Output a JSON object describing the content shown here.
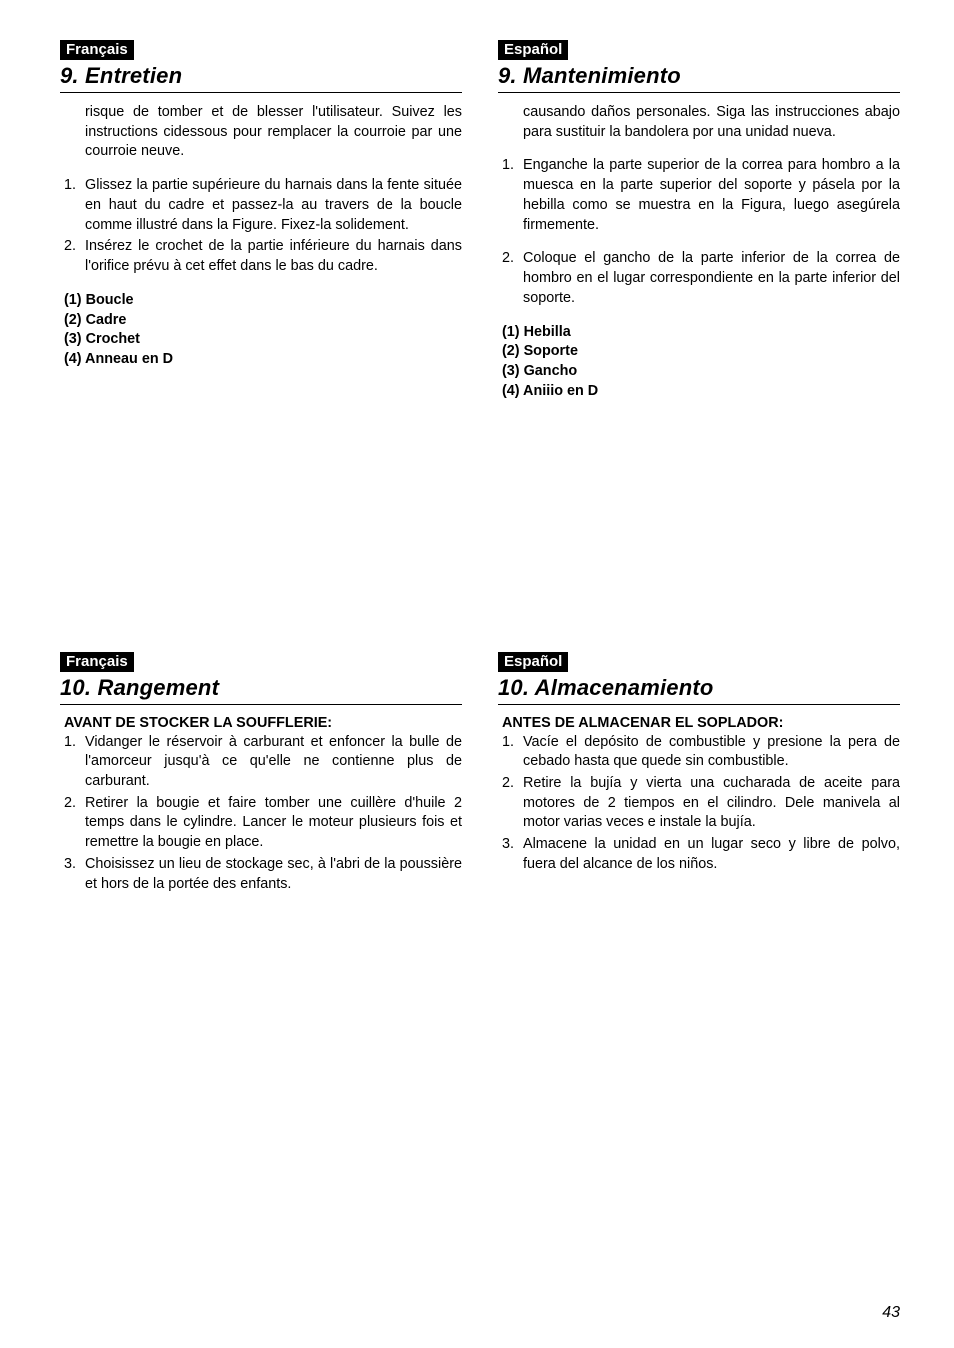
{
  "colors": {
    "text": "#000000",
    "bg": "#ffffff",
    "tag_bg": "#000000",
    "tag_fg": "#ffffff",
    "rule": "#000000"
  },
  "fonts": {
    "body_size_pt": 11,
    "title_size_pt": 16,
    "tag_size_pt": 11
  },
  "page_number": "43",
  "sections": {
    "s9": {
      "fr": {
        "lang": "Français",
        "title": "9. Entretien",
        "intro": "risque de tomber et de blesser l'utilisateur. Suivez les instructions cidessous pour remplacer la courroie par une courroie neuve.",
        "steps": [
          "Glissez la partie supérieure du harnais dans la fente située en haut du cadre et passez-la au travers de la boucle comme illustré dans la Figure. Fixez-la solidement.",
          "Insérez le crochet de la partie inférieure du harnais dans l'orifice prévu à cet effet dans le bas du cadre."
        ],
        "parts": [
          "(1) Boucle",
          "(2) Cadre",
          "(3) Crochet",
          "(4) Anneau en D"
        ]
      },
      "es": {
        "lang": "Español",
        "title": "9. Mantenimiento",
        "intro": "causando daños personales. Siga las instrucciones abajo para sustituir la bandolera por una unidad nueva.",
        "steps": [
          "Enganche la parte superior de la correa para hombro a la muesca en la parte superior del soporte y pásela por la hebilla como se muestra en la Figura, luego asegúrela firmemente.",
          "Coloque el gancho de la parte inferior de la correa de hombro en el lugar correspondiente en la parte inferior del soporte."
        ],
        "parts": [
          "(1) Hebilla",
          "(2) Soporte",
          "(3) Gancho",
          "(4) Aniiio en D"
        ]
      }
    },
    "s10": {
      "fr": {
        "lang": "Français",
        "title": "10. Rangement",
        "subhead": "AVANT DE STOCKER LA SOUFFLERIE:",
        "steps": [
          "Vidanger le réservoir à carburant et enfoncer la bulle de l'amorceur jusqu'à ce qu'elle ne contienne plus de carburant.",
          "Retirer la bougie et faire tomber une cuillère d'huile 2 temps dans le cylindre. Lancer le moteur plusieurs fois et remettre la bougie en place.",
          "Choisissez un lieu de stockage sec, à l'abri de la poussière et hors de la portée des enfants."
        ]
      },
      "es": {
        "lang": "Español",
        "title": "10. Almacenamiento",
        "subhead": "ANTES DE ALMACENAR EL SOPLADOR:",
        "steps": [
          "Vacíe el depósito de combustible y presione la pera de cebado hasta que quede sin combustible.",
          "Retire la bujía y vierta una cucharada de aceite para motores de 2 tiempos en el cilindro. Dele manivela al motor varias veces e instale la bujía.",
          "Almacene la unidad en un lugar seco y libre de polvo, fuera del alcance de los niños."
        ]
      }
    }
  }
}
